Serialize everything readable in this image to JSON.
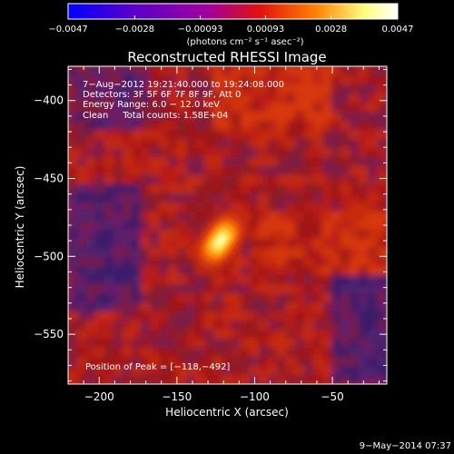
{
  "chart_data": {
    "type": "heatmap",
    "title": "Reconstructed RHESSI Image",
    "xlabel": "Heliocentric X (arcsec)",
    "ylabel": "Heliocentric Y (arcsec)",
    "xlim": [
      -220,
      -15
    ],
    "ylim": [
      -582,
      -378
    ],
    "x_ticks": [
      -200,
      -150,
      -100,
      -50
    ],
    "x_tick_labels": [
      "−200",
      "−150",
      "−100",
      "−50"
    ],
    "y_ticks": [
      -400,
      -450,
      -500,
      -550
    ],
    "y_tick_labels": [
      "−400",
      "−450",
      "−500",
      "−550"
    ],
    "annotations": [
      "7−Aug−2012 19:21:40.000 to 19:24:08.000",
      "Detectors: 3F 5F 6F 7F 8F 9F, Att 0",
      "Energy Range: 6.0 − 12.0 keV",
      "Clean     Total counts: 1.58E+04",
      "Position of Peak = [−118,−492]"
    ],
    "peak": {
      "x": -118,
      "y": -492
    },
    "colorbar": {
      "tick_values": [
        -0.0047,
        -0.0028,
        -0.00093,
        0.00093,
        0.0028,
        0.0047
      ],
      "tick_labels": [
        "−0.0047",
        "−0.0028",
        "−0.00093",
        "0.00093",
        "0.0028",
        "0.0047"
      ],
      "unit": "(photons cm⁻² s⁻¹ asec⁻²)",
      "colors": [
        "#0000ff",
        "#5a00c8",
        "#a000a0",
        "#e01010",
        "#ff8000",
        "#ffff80",
        "#ffffff"
      ]
    },
    "sources": [
      {
        "x": -122,
        "y": -490,
        "amplitude": 0.0047,
        "sigma_major": 11,
        "sigma_minor": 6.5,
        "angle_deg": 55
      }
    ]
  },
  "footer": {
    "date": "9−May−2014 07:37"
  }
}
